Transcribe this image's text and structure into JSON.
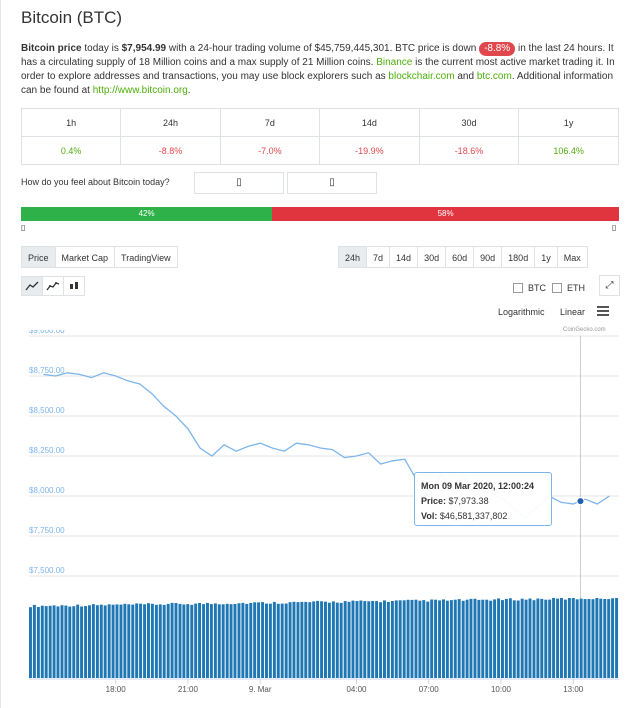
{
  "title": "Bitcoin (BTC)",
  "description": {
    "bold_lead": "Bitcoin price",
    "text1": " today is ",
    "price": "$7,954.99",
    "text2": " with a 24-hour trading volume of $45,759,445,301. BTC price is down ",
    "change_badge": "-8.8%",
    "text3": " in the last 24 hours. It has a circulating supply of 18 Million coins and a max supply of 21 Million coins. ",
    "link_binance": "Binance",
    "text4": " is the current most active market trading it. In order to explore addresses and transactions, you may use block explorers such as ",
    "link_blockchair": "blockchair.com",
    "text5": " and ",
    "link_btc": "btc.com",
    "text6": ". Additional information can be found at ",
    "link_site": "http://www.bitcoin.org",
    "text7": "."
  },
  "performance": {
    "headers": [
      "1h",
      "24h",
      "7d",
      "14d",
      "30d",
      "1y"
    ],
    "values": [
      "0.4%",
      "-8.8%",
      "-7.0%",
      "-19.9%",
      "-18.6%",
      "106.4%"
    ]
  },
  "sentiment": {
    "question": "How do you feel about Bitcoin today?",
    "vote_up_glyph": "▯",
    "vote_down_glyph": "▯",
    "up_pct": 42,
    "down_pct": 58,
    "up_label": "42%",
    "down_label": "58%",
    "left_glyph": "▯",
    "right_glyph": "▯"
  },
  "chart_tabs": [
    "Price",
    "Market Cap",
    "TradingView"
  ],
  "range_tabs": [
    "24h",
    "7d",
    "14d",
    "30d",
    "60d",
    "90d",
    "180d",
    "1y",
    "Max"
  ],
  "chart_icons": [
    "line-chart-icon",
    "area-chart-icon",
    "candlestick-icon"
  ],
  "compare": {
    "btc": "BTC",
    "eth": "ETH"
  },
  "scale": {
    "log": "Logarithmic",
    "linear": "Linear"
  },
  "credit": "CoinGecko.com",
  "tooltip": {
    "date": "Mon 09 Mar 2020, 12:00:24",
    "price_label": "Price:",
    "price": "$7,973.38",
    "vol_label": "Vol:",
    "vol": "$46,581,337,802"
  },
  "colors": {
    "line": "#7cb5ec",
    "volume": "#1f78b4",
    "up": "#2fb14a",
    "down": "#e0343e",
    "positive": "#4eaf0a",
    "negative": "#e0474c"
  },
  "chart_data": {
    "type": "line",
    "yticks": [
      "$9,000.00",
      "$8,750.00",
      "$8,500.00",
      "$8,250.00",
      "$8,000.00",
      "$7,750.00",
      "$7,500.00"
    ],
    "ytick_values": [
      9000,
      8750,
      8500,
      8250,
      8000,
      7750,
      7500
    ],
    "xticks": [
      "18:00",
      "21:00",
      "9. Mar",
      "04:00",
      "07:00",
      "10:00",
      "13:00"
    ],
    "xtick_hours": [
      3,
      6,
      9,
      13,
      16,
      19,
      22
    ],
    "x_range_hours": [
      -0.6,
      23.9
    ],
    "ylim": [
      7500,
      9000
    ],
    "series": [
      {
        "hours": [
          0,
          0.5,
          1,
          1.5,
          2,
          2.5,
          3,
          3.5,
          4,
          4.5,
          5,
          5.5,
          6,
          6.5,
          7,
          7.5,
          8,
          8.5,
          9,
          9.5,
          10,
          10.5,
          11,
          11.5,
          12,
          12.5,
          13,
          13.5,
          14,
          14.5,
          15,
          15.5,
          16,
          16.5,
          17,
          17.5,
          18,
          18.5,
          19,
          19.5,
          20,
          20.5,
          21,
          21.5,
          22,
          22.5,
          23,
          23.5
        ],
        "values": [
          8760,
          8750,
          8770,
          8760,
          8740,
          8770,
          8750,
          8720,
          8700,
          8640,
          8560,
          8500,
          8420,
          8300,
          8250,
          8320,
          8280,
          8310,
          8330,
          8300,
          8280,
          8330,
          8320,
          8300,
          8290,
          8240,
          8250,
          8270,
          8200,
          8220,
          8230,
          8100,
          7990,
          8140,
          8050,
          8120,
          8040,
          8020,
          7990,
          7930,
          7860,
          7930,
          8000,
          7960,
          7950,
          7980,
          7950,
          8000
        ]
      }
    ],
    "volume_range": [
      0.9,
      1.0
    ],
    "hover_hour": 22.3
  }
}
